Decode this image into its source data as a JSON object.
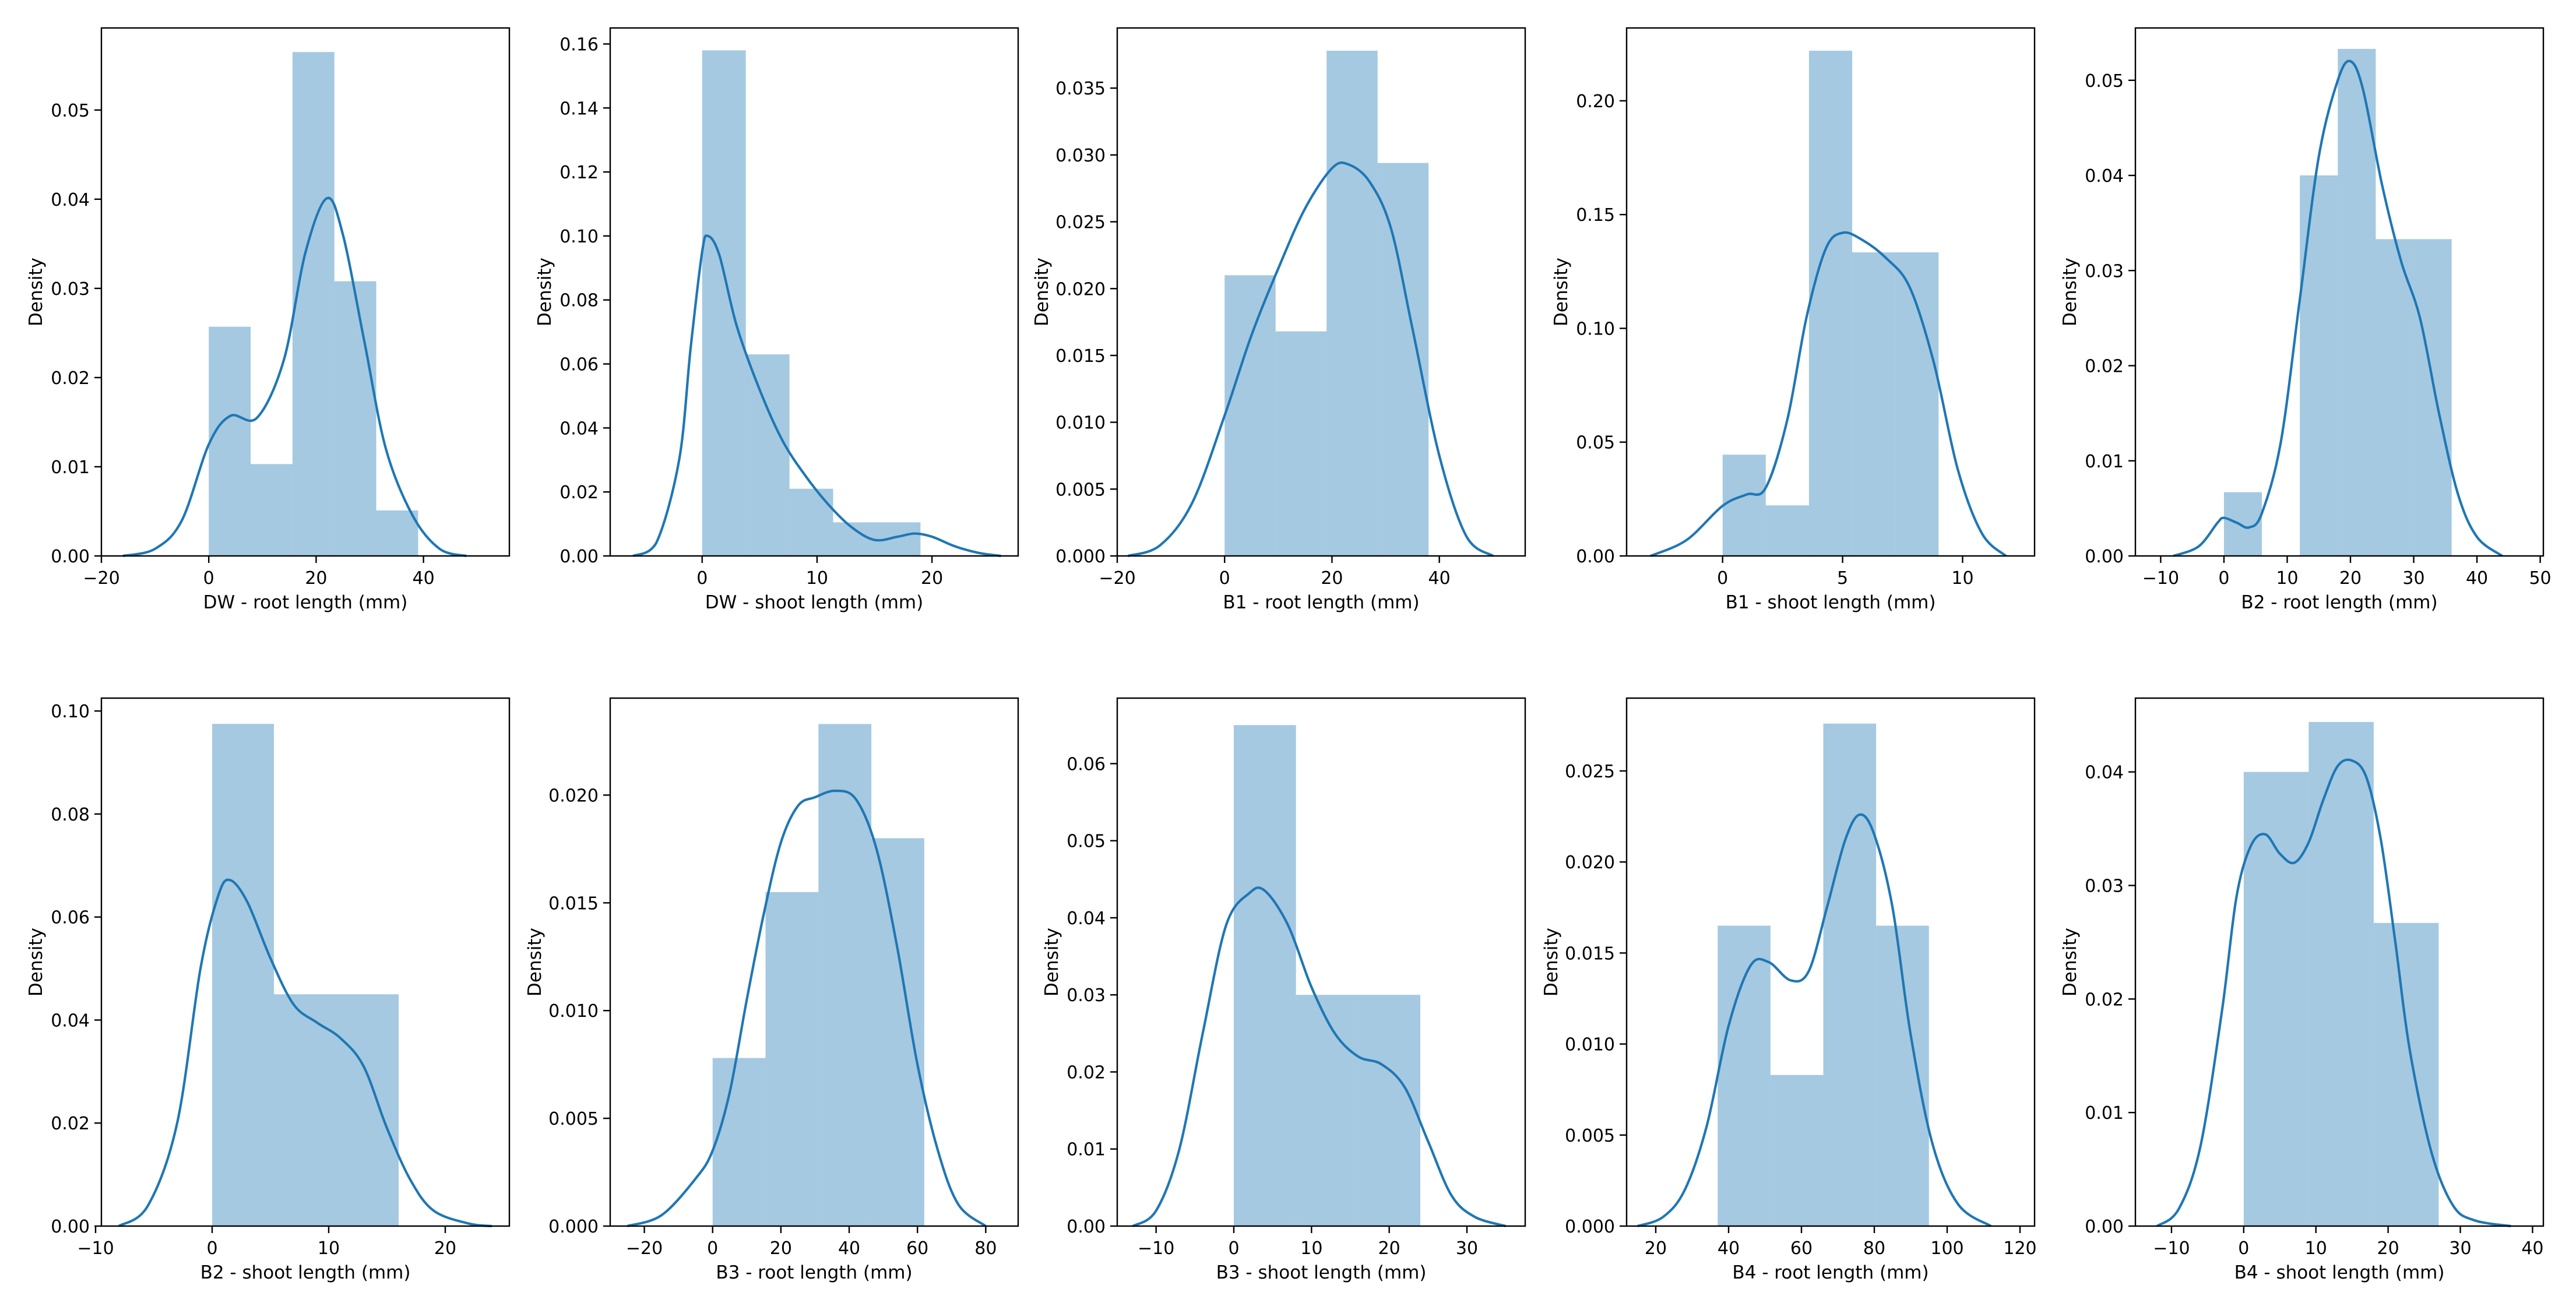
{
  "chart_data": [
    {
      "type": "histogram_kde",
      "xlabel": "DW - root length (mm)",
      "ylabel": "Density",
      "xlim": [
        -20,
        56
      ],
      "ylim": [
        0,
        0.0592
      ],
      "xticks": [
        -20,
        0,
        20,
        40
      ],
      "xtick_labels": [
        "−20",
        "0",
        "20",
        "40"
      ],
      "yticks": [
        0,
        0.01,
        0.02,
        0.03,
        0.04,
        0.05
      ],
      "ytick_labels": [
        "0.00",
        "0.01",
        "0.02",
        "0.03",
        "0.04",
        "0.05"
      ],
      "bins": [
        {
          "x0": 0,
          "x1": 7.8,
          "value": 0.0257
        },
        {
          "x0": 7.8,
          "x1": 15.6,
          "value": 0.0103
        },
        {
          "x0": 15.6,
          "x1": 23.4,
          "value": 0.0565
        },
        {
          "x0": 23.4,
          "x1": 31.2,
          "value": 0.0308
        },
        {
          "x0": 31.2,
          "x1": 39,
          "value": 0.0051
        }
      ],
      "kde": [
        [
          -16,
          0
        ],
        [
          -10,
          0.0008
        ],
        [
          -5,
          0.004
        ],
        [
          0,
          0.0125
        ],
        [
          4,
          0.0157
        ],
        [
          9,
          0.0155
        ],
        [
          14,
          0.022
        ],
        [
          18,
          0.034
        ],
        [
          22,
          0.0401
        ],
        [
          25,
          0.036
        ],
        [
          29,
          0.024
        ],
        [
          33,
          0.012
        ],
        [
          38,
          0.0045
        ],
        [
          43,
          0.0008
        ],
        [
          48,
          0
        ]
      ]
    },
    {
      "type": "histogram_kde",
      "xlabel": "DW - shoot length (mm)",
      "ylabel": "Density",
      "xlim": [
        -8,
        27.5
      ],
      "ylim": [
        0,
        0.165
      ],
      "xticks": [
        0,
        10,
        20
      ],
      "xtick_labels": [
        "0",
        "10",
        "20"
      ],
      "yticks": [
        0,
        0.02,
        0.04,
        0.06,
        0.08,
        0.1,
        0.12,
        0.14,
        0.16
      ],
      "ytick_labels": [
        "0.00",
        "0.02",
        "0.04",
        "0.06",
        "0.08",
        "0.10",
        "0.12",
        "0.14",
        "0.16"
      ],
      "bins": [
        {
          "x0": 0,
          "x1": 3.8,
          "value": 0.158
        },
        {
          "x0": 3.8,
          "x1": 7.6,
          "value": 0.063
        },
        {
          "x0": 7.6,
          "x1": 11.4,
          "value": 0.021
        },
        {
          "x0": 11.4,
          "x1": 15.2,
          "value": 0.0105
        },
        {
          "x0": 15.2,
          "x1": 19,
          "value": 0.0105
        }
      ],
      "kde": [
        [
          -6,
          0
        ],
        [
          -4,
          0.004
        ],
        [
          -2,
          0.03
        ],
        [
          -1,
          0.065
        ],
        [
          0,
          0.095
        ],
        [
          0.5,
          0.1
        ],
        [
          1.5,
          0.094
        ],
        [
          3,
          0.072
        ],
        [
          5,
          0.052
        ],
        [
          7,
          0.036
        ],
        [
          9,
          0.025
        ],
        [
          11,
          0.016
        ],
        [
          13,
          0.009
        ],
        [
          15,
          0.005
        ],
        [
          17,
          0.006
        ],
        [
          18.5,
          0.007
        ],
        [
          20,
          0.006
        ],
        [
          22,
          0.003
        ],
        [
          24,
          0.001
        ],
        [
          26,
          0
        ]
      ]
    },
    {
      "type": "histogram_kde",
      "xlabel": "B1 - root length (mm)",
      "ylabel": "Density",
      "xlim": [
        -20,
        56
      ],
      "ylim": [
        0,
        0.0395
      ],
      "xticks": [
        -20,
        0,
        20,
        40
      ],
      "xtick_labels": [
        "−20",
        "0",
        "20",
        "40"
      ],
      "yticks": [
        0,
        0.005,
        0.01,
        0.015,
        0.02,
        0.025,
        0.03,
        0.035
      ],
      "ytick_labels": [
        "0.000",
        "0.005",
        "0.010",
        "0.015",
        "0.020",
        "0.025",
        "0.030",
        "0.035"
      ],
      "bins": [
        {
          "x0": 0,
          "x1": 9.5,
          "value": 0.021
        },
        {
          "x0": 9.5,
          "x1": 19,
          "value": 0.0168
        },
        {
          "x0": 19,
          "x1": 28.5,
          "value": 0.0378
        },
        {
          "x0": 28.5,
          "x1": 38,
          "value": 0.0294
        }
      ],
      "kde": [
        [
          -18,
          0
        ],
        [
          -12,
          0.0008
        ],
        [
          -6,
          0.004
        ],
        [
          0,
          0.0105
        ],
        [
          5,
          0.0165
        ],
        [
          10,
          0.0215
        ],
        [
          15,
          0.026
        ],
        [
          20,
          0.029
        ],
        [
          23,
          0.0293
        ],
        [
          27,
          0.028
        ],
        [
          31,
          0.0245
        ],
        [
          35,
          0.017
        ],
        [
          40,
          0.0075
        ],
        [
          45,
          0.0015
        ],
        [
          50,
          0
        ]
      ]
    },
    {
      "type": "histogram_kde",
      "xlabel": "B1 - shoot length (mm)",
      "ylabel": "Density",
      "xlim": [
        -4,
        13
      ],
      "ylim": [
        0,
        0.232
      ],
      "xticks": [
        0,
        5,
        10
      ],
      "xtick_labels": [
        "0",
        "5",
        "10"
      ],
      "yticks": [
        0,
        0.05,
        0.1,
        0.15,
        0.2
      ],
      "ytick_labels": [
        "0.00",
        "0.05",
        "0.10",
        "0.15",
        "0.20"
      ],
      "bins": [
        {
          "x0": 0,
          "x1": 1.8,
          "value": 0.0445
        },
        {
          "x0": 1.8,
          "x1": 3.6,
          "value": 0.0222
        },
        {
          "x0": 3.6,
          "x1": 5.4,
          "value": 0.222
        },
        {
          "x0": 5.4,
          "x1": 7.2,
          "value": 0.1334
        },
        {
          "x0": 7.2,
          "x1": 9,
          "value": 0.1334
        }
      ],
      "kde": [
        [
          -3,
          0
        ],
        [
          -1.5,
          0.007
        ],
        [
          0,
          0.022
        ],
        [
          1,
          0.027
        ],
        [
          1.8,
          0.03
        ],
        [
          2.7,
          0.06
        ],
        [
          3.5,
          0.105
        ],
        [
          4.3,
          0.135
        ],
        [
          5,
          0.142
        ],
        [
          5.8,
          0.139
        ],
        [
          6.8,
          0.131
        ],
        [
          7.8,
          0.118
        ],
        [
          8.8,
          0.085
        ],
        [
          9.8,
          0.038
        ],
        [
          10.8,
          0.01
        ],
        [
          11.8,
          0
        ]
      ]
    },
    {
      "type": "histogram_kde",
      "xlabel": "B2 - root length (mm)",
      "ylabel": "Density",
      "xlim": [
        -14,
        50.5
      ],
      "ylim": [
        0,
        0.0555
      ],
      "xticks": [
        -10,
        0,
        10,
        20,
        30,
        40,
        50
      ],
      "xtick_labels": [
        "−10",
        "0",
        "10",
        "20",
        "30",
        "40",
        "50"
      ],
      "yticks": [
        0,
        0.01,
        0.02,
        0.03,
        0.04,
        0.05
      ],
      "ytick_labels": [
        "0.00",
        "0.01",
        "0.02",
        "0.03",
        "0.04",
        "0.05"
      ],
      "bins": [
        {
          "x0": 0,
          "x1": 6,
          "value": 0.0067
        },
        {
          "x0": 6,
          "x1": 12,
          "value": 0
        },
        {
          "x0": 12,
          "x1": 18,
          "value": 0.04
        },
        {
          "x0": 18,
          "x1": 24,
          "value": 0.0533
        },
        {
          "x0": 24,
          "x1": 30,
          "value": 0.0333
        },
        {
          "x0": 30,
          "x1": 36,
          "value": 0.0333
        }
      ],
      "kde": [
        [
          -8,
          0
        ],
        [
          -4,
          0.001
        ],
        [
          -1,
          0.0035
        ],
        [
          0,
          0.004
        ],
        [
          2,
          0.0035
        ],
        [
          4,
          0.003
        ],
        [
          6,
          0.0045
        ],
        [
          9,
          0.012
        ],
        [
          12,
          0.027
        ],
        [
          15,
          0.042
        ],
        [
          18,
          0.05
        ],
        [
          20,
          0.052
        ],
        [
          22,
          0.049
        ],
        [
          25,
          0.039
        ],
        [
          28,
          0.031
        ],
        [
          31,
          0.025
        ],
        [
          34,
          0.015
        ],
        [
          37,
          0.0065
        ],
        [
          40,
          0.002
        ],
        [
          44,
          0
        ]
      ]
    },
    {
      "type": "histogram_kde",
      "xlabel": "B2 - shoot length (mm)",
      "ylabel": "Density",
      "xlim": [
        -9.5,
        25.5
      ],
      "ylim": [
        0,
        0.1025
      ],
      "xticks": [
        -10,
        0,
        10,
        20
      ],
      "xtick_labels": [
        "−10",
        "0",
        "10",
        "20"
      ],
      "yticks": [
        0,
        0.02,
        0.04,
        0.06,
        0.08,
        0.1
      ],
      "ytick_labels": [
        "0.00",
        "0.02",
        "0.04",
        "0.06",
        "0.08",
        "0.10"
      ],
      "bins": [
        {
          "x0": 0,
          "x1": 5.3,
          "value": 0.0975
        },
        {
          "x0": 5.3,
          "x1": 10.6,
          "value": 0.045
        },
        {
          "x0": 10.6,
          "x1": 16,
          "value": 0.045
        }
      ],
      "kde": [
        [
          -8,
          0
        ],
        [
          -5.5,
          0.004
        ],
        [
          -3,
          0.02
        ],
        [
          -1,
          0.05
        ],
        [
          0.5,
          0.064
        ],
        [
          1.5,
          0.0672
        ],
        [
          3,
          0.063
        ],
        [
          5,
          0.052
        ],
        [
          7,
          0.043
        ],
        [
          9,
          0.0395
        ],
        [
          11,
          0.0365
        ],
        [
          13,
          0.031
        ],
        [
          15,
          0.019
        ],
        [
          17,
          0.009
        ],
        [
          19,
          0.003
        ],
        [
          22,
          0.0005
        ],
        [
          24,
          0
        ]
      ]
    },
    {
      "type": "histogram_kde",
      "xlabel": "B3 - root length (mm)",
      "ylabel": "Density",
      "xlim": [
        -30,
        89.5
      ],
      "ylim": [
        0,
        0.0245
      ],
      "xticks": [
        -20,
        0,
        20,
        40,
        60,
        80
      ],
      "xtick_labels": [
        "−20",
        "0",
        "20",
        "40",
        "60",
        "80"
      ],
      "yticks": [
        0,
        0.005,
        0.01,
        0.015,
        0.02
      ],
      "ytick_labels": [
        "0.000",
        "0.005",
        "0.010",
        "0.015",
        "0.020"
      ],
      "bins": [
        {
          "x0": 0,
          "x1": 15.5,
          "value": 0.0078
        },
        {
          "x0": 15.5,
          "x1": 31,
          "value": 0.0155
        },
        {
          "x0": 31,
          "x1": 46.5,
          "value": 0.0233
        },
        {
          "x0": 46.5,
          "x1": 62,
          "value": 0.018
        }
      ],
      "kde": [
        [
          -25,
          0
        ],
        [
          -15,
          0.0005
        ],
        [
          -5,
          0.0022
        ],
        [
          0,
          0.0035
        ],
        [
          5,
          0.0062
        ],
        [
          10,
          0.0105
        ],
        [
          15,
          0.0145
        ],
        [
          20,
          0.0178
        ],
        [
          25,
          0.0195
        ],
        [
          30,
          0.0199
        ],
        [
          36,
          0.0202
        ],
        [
          42,
          0.0198
        ],
        [
          48,
          0.0175
        ],
        [
          54,
          0.013
        ],
        [
          60,
          0.0075
        ],
        [
          66,
          0.0035
        ],
        [
          72,
          0.001
        ],
        [
          80,
          0
        ]
      ]
    },
    {
      "type": "histogram_kde",
      "xlabel": "B3 - shoot length (mm)",
      "ylabel": "Density",
      "xlim": [
        -15,
        37.5
      ],
      "ylim": [
        0,
        0.0685
      ],
      "xticks": [
        -10,
        0,
        10,
        20,
        30
      ],
      "xtick_labels": [
        "−10",
        "0",
        "10",
        "20",
        "30"
      ],
      "yticks": [
        0,
        0.01,
        0.02,
        0.03,
        0.04,
        0.05,
        0.06
      ],
      "ytick_labels": [
        "0.00",
        "0.01",
        "0.02",
        "0.03",
        "0.04",
        "0.05",
        "0.06"
      ],
      "bins": [
        {
          "x0": 0,
          "x1": 8,
          "value": 0.065
        },
        {
          "x0": 8,
          "x1": 16,
          "value": 0.03
        },
        {
          "x0": 16,
          "x1": 24,
          "value": 0.03
        }
      ],
      "kde": [
        [
          -13,
          0
        ],
        [
          -10,
          0.002
        ],
        [
          -7,
          0.01
        ],
        [
          -4,
          0.025
        ],
        [
          -1,
          0.039
        ],
        [
          2,
          0.0432
        ],
        [
          4,
          0.0435
        ],
        [
          7,
          0.039
        ],
        [
          10,
          0.031
        ],
        [
          13,
          0.025
        ],
        [
          16,
          0.022
        ],
        [
          19,
          0.021
        ],
        [
          22,
          0.018
        ],
        [
          25,
          0.011
        ],
        [
          28,
          0.004
        ],
        [
          31,
          0.0012
        ],
        [
          35,
          0
        ]
      ]
    },
    {
      "type": "histogram_kde",
      "xlabel": "B4 - root length (mm)",
      "ylabel": "Density",
      "xlim": [
        12,
        124
      ],
      "ylim": [
        0,
        0.029
      ],
      "xticks": [
        20,
        40,
        60,
        80,
        100,
        120
      ],
      "xtick_labels": [
        "20",
        "40",
        "60",
        "80",
        "100",
        "120"
      ],
      "yticks": [
        0,
        0.005,
        0.01,
        0.015,
        0.02,
        0.025
      ],
      "ytick_labels": [
        "0.000",
        "0.005",
        "0.010",
        "0.015",
        "0.020",
        "0.025"
      ],
      "bins": [
        {
          "x0": 37,
          "x1": 51.5,
          "value": 0.0165
        },
        {
          "x0": 51.5,
          "x1": 66,
          "value": 0.0083
        },
        {
          "x0": 66,
          "x1": 80.5,
          "value": 0.0276
        },
        {
          "x0": 80.5,
          "x1": 95,
          "value": 0.0165
        }
      ],
      "kde": [
        [
          15,
          0
        ],
        [
          22,
          0.0005
        ],
        [
          28,
          0.002
        ],
        [
          34,
          0.0055
        ],
        [
          40,
          0.011
        ],
        [
          46,
          0.0143
        ],
        [
          51,
          0.0145
        ],
        [
          57,
          0.0135
        ],
        [
          62,
          0.014
        ],
        [
          67,
          0.0175
        ],
        [
          72,
          0.0212
        ],
        [
          76,
          0.0226
        ],
        [
          80,
          0.0215
        ],
        [
          85,
          0.0175
        ],
        [
          90,
          0.0105
        ],
        [
          96,
          0.0045
        ],
        [
          103,
          0.0012
        ],
        [
          112,
          0
        ]
      ]
    },
    {
      "type": "histogram_kde",
      "xlabel": "B4 - shoot length (mm)",
      "ylabel": "Density",
      "xlim": [
        -15,
        41.5
      ],
      "ylim": [
        0,
        0.0465
      ],
      "xticks": [
        -10,
        0,
        10,
        20,
        30,
        40
      ],
      "xtick_labels": [
        "−10",
        "0",
        "10",
        "20",
        "30",
        "40"
      ],
      "yticks": [
        0,
        0.01,
        0.02,
        0.03,
        0.04
      ],
      "ytick_labels": [
        "0.00",
        "0.01",
        "0.02",
        "0.03",
        "0.04"
      ],
      "bins": [
        {
          "x0": 0,
          "x1": 9,
          "value": 0.04
        },
        {
          "x0": 9,
          "x1": 18,
          "value": 0.0444
        },
        {
          "x0": 18,
          "x1": 27,
          "value": 0.0267
        }
      ],
      "kde": [
        [
          -12,
          0
        ],
        [
          -9,
          0.0015
        ],
        [
          -6,
          0.007
        ],
        [
          -3,
          0.019
        ],
        [
          -1,
          0.029
        ],
        [
          1,
          0.0335
        ],
        [
          3,
          0.0345
        ],
        [
          5,
          0.0328
        ],
        [
          7,
          0.032
        ],
        [
          9,
          0.0338
        ],
        [
          11,
          0.0375
        ],
        [
          13,
          0.0405
        ],
        [
          15,
          0.041
        ],
        [
          17,
          0.0395
        ],
        [
          19,
          0.034
        ],
        [
          21,
          0.025
        ],
        [
          23,
          0.0155
        ],
        [
          26,
          0.0065
        ],
        [
          29,
          0.0018
        ],
        [
          32,
          0.0005
        ],
        [
          37,
          0
        ]
      ]
    }
  ]
}
